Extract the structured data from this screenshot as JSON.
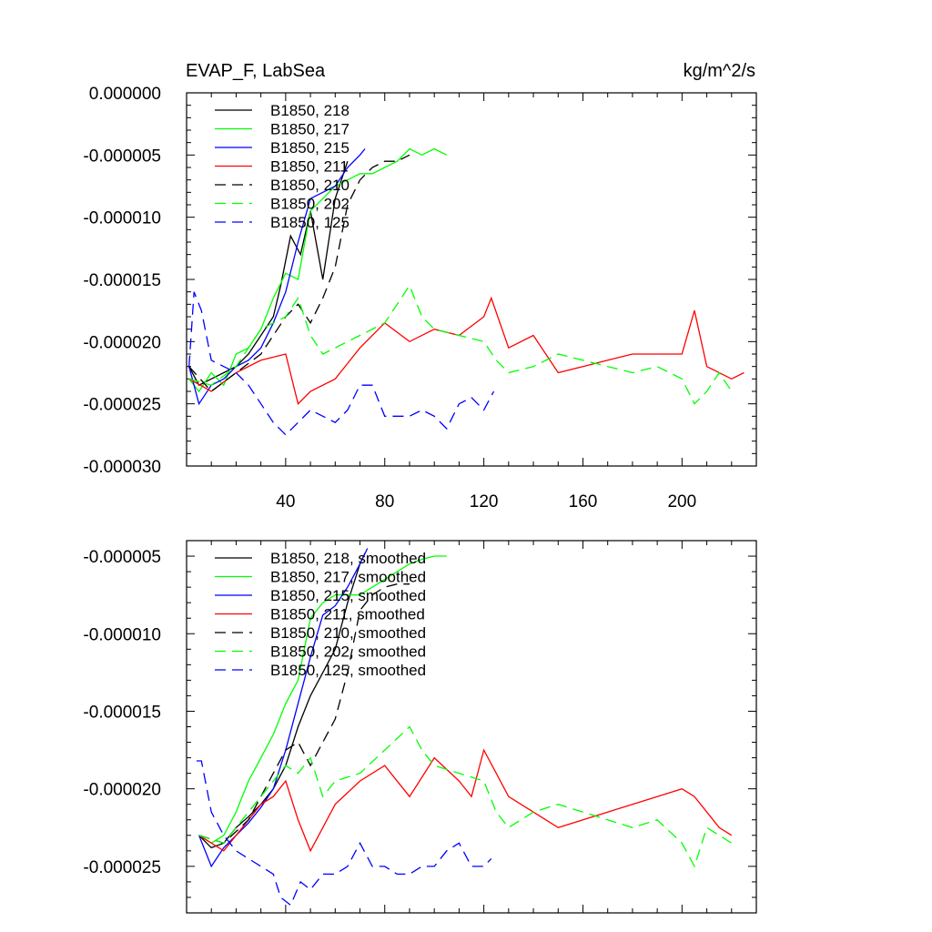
{
  "figure": {
    "title_left": "EVAP_F, LabSea",
    "title_right": "kg/m^2/s"
  },
  "chart_data": [
    {
      "type": "line",
      "panel": "top",
      "title": "EVAP_F, LabSea",
      "units": "kg/m^2/s",
      "xlim": [
        0,
        230
      ],
      "ylim": [
        -3e-05,
        0.0
      ],
      "x_ticks": [
        40,
        80,
        120,
        160,
        200
      ],
      "y_ticks": [
        0.0,
        -5e-06,
        -1e-05,
        -1.5e-05,
        -2e-05,
        -2.5e-05,
        -3e-05
      ],
      "x_tick_labels": [
        "40",
        "80",
        "120",
        "160",
        "200"
      ],
      "y_tick_labels": [
        "0.000000",
        "-0.000005",
        "-0.000010",
        "-0.000015",
        "-0.000020",
        "-0.000025",
        "-0.000030"
      ],
      "legend_position": "top-left",
      "series": [
        {
          "name": "B1850, 218",
          "color": "#000000",
          "dash": "solid",
          "x": [
            1,
            5,
            10,
            15,
            20,
            25,
            30,
            35,
            38,
            42,
            46,
            50,
            55,
            60,
            65
          ],
          "y": [
            -2.2e-05,
            -2.35e-05,
            -2.3e-05,
            -2.25e-05,
            -2.2e-05,
            -2.1e-05,
            -1.95e-05,
            -1.8e-05,
            -1.55e-05,
            -1.15e-05,
            -1.3e-05,
            -9.5e-06,
            -1.5e-05,
            -8.5e-06,
            -5.5e-06
          ]
        },
        {
          "name": "B1850, 217",
          "color": "#00ff00",
          "dash": "solid",
          "x": [
            1,
            5,
            10,
            15,
            20,
            25,
            30,
            35,
            40,
            45,
            50,
            55,
            60,
            65,
            70,
            75,
            80,
            85,
            90,
            95,
            100,
            105
          ],
          "y": [
            -2.3e-05,
            -2.4e-05,
            -2.25e-05,
            -2.35e-05,
            -2.1e-05,
            -2.05e-05,
            -1.9e-05,
            -1.65e-05,
            -1.45e-05,
            -1.5e-05,
            -9.5e-06,
            -8.5e-06,
            -7.5e-06,
            -7e-06,
            -6.5e-06,
            -6.5e-06,
            -6e-06,
            -5.5e-06,
            -4.5e-06,
            -5e-06,
            -4.5e-06,
            -5e-06
          ]
        },
        {
          "name": "B1850, 215",
          "color": "#0000ff",
          "dash": "solid",
          "x": [
            1,
            5,
            10,
            15,
            20,
            25,
            30,
            35,
            40,
            45,
            50,
            55,
            60,
            65,
            70,
            72
          ],
          "y": [
            -2.2e-05,
            -2.5e-05,
            -2.35e-05,
            -2.3e-05,
            -2.2e-05,
            -2.15e-05,
            -2.05e-05,
            -1.85e-05,
            -1.6e-05,
            -1.2e-05,
            -8.5e-06,
            -8e-06,
            -7.5e-06,
            -6e-06,
            -5e-06,
            -4.5e-06
          ]
        },
        {
          "name": "B1850, 211",
          "color": "#ff0000",
          "dash": "solid",
          "x": [
            1,
            10,
            20,
            30,
            40,
            45,
            50,
            60,
            70,
            80,
            90,
            100,
            110,
            120,
            123,
            130,
            140,
            150,
            160,
            170,
            180,
            190,
            200,
            205,
            210,
            220,
            225
          ],
          "y": [
            -2.3e-05,
            -2.4e-05,
            -2.25e-05,
            -2.15e-05,
            -2.1e-05,
            -2.5e-05,
            -2.4e-05,
            -2.3e-05,
            -2.05e-05,
            -1.85e-05,
            -2e-05,
            -1.9e-05,
            -1.95e-05,
            -1.8e-05,
            -1.65e-05,
            -2.05e-05,
            -1.95e-05,
            -2.25e-05,
            -2.2e-05,
            -2.15e-05,
            -2.1e-05,
            -2.1e-05,
            -2.1e-05,
            -1.75e-05,
            -2.2e-05,
            -2.3e-05,
            -2.25e-05
          ]
        },
        {
          "name": "B1850, 210",
          "color": "#000000",
          "dash": "dashed",
          "x": [
            1,
            10,
            20,
            30,
            40,
            45,
            50,
            55,
            60,
            65,
            70,
            75,
            80,
            85,
            90
          ],
          "y": [
            -2.2e-05,
            -2.4e-05,
            -2.25e-05,
            -2.1e-05,
            -1.8e-05,
            -1.7e-05,
            -1.85e-05,
            -1.65e-05,
            -1.4e-05,
            -9e-06,
            -7e-06,
            -6e-06,
            -5.5e-06,
            -5.5e-06,
            -5e-06
          ]
        },
        {
          "name": "B1850, 202",
          "color": "#00ff00",
          "dash": "dashed",
          "x": [
            1,
            10,
            20,
            30,
            40,
            45,
            50,
            55,
            60,
            70,
            80,
            90,
            95,
            100,
            110,
            120,
            125,
            130,
            140,
            150,
            160,
            170,
            180,
            190,
            200,
            205,
            210,
            215,
            220
          ],
          "y": [
            -2.3e-05,
            -2.35e-05,
            -2.2e-05,
            -1.9e-05,
            -1.8e-05,
            -1.65e-05,
            -1.95e-05,
            -2.1e-05,
            -2.05e-05,
            -1.95e-05,
            -1.85e-05,
            -1.55e-05,
            -1.8e-05,
            -1.9e-05,
            -1.95e-05,
            -2e-05,
            -2.15e-05,
            -2.25e-05,
            -2.2e-05,
            -2.1e-05,
            -2.15e-05,
            -2.2e-05,
            -2.25e-05,
            -2.2e-05,
            -2.3e-05,
            -2.5e-05,
            -2.4e-05,
            -2.25e-05,
            -2.4e-05
          ]
        },
        {
          "name": "B1850, 125",
          "color": "#0000ff",
          "dash": "dashed",
          "x": [
            1,
            3,
            6,
            10,
            15,
            20,
            25,
            30,
            35,
            40,
            45,
            50,
            55,
            60,
            65,
            70,
            75,
            80,
            85,
            90,
            95,
            100,
            105,
            110,
            115,
            120,
            124
          ],
          "y": [
            -2.2e-05,
            -1.6e-05,
            -1.75e-05,
            -2.15e-05,
            -2.2e-05,
            -2.25e-05,
            -2.35e-05,
            -2.5e-05,
            -2.65e-05,
            -2.75e-05,
            -2.65e-05,
            -2.55e-05,
            -2.6e-05,
            -2.65e-05,
            -2.55e-05,
            -2.35e-05,
            -2.35e-05,
            -2.6e-05,
            -2.6e-05,
            -2.6e-05,
            -2.55e-05,
            -2.6e-05,
            -2.7e-05,
            -2.5e-05,
            -2.45e-05,
            -2.55e-05,
            -2.4e-05
          ]
        }
      ]
    },
    {
      "type": "line",
      "panel": "bottom",
      "xlim": [
        0,
        230
      ],
      "ylim": [
        -2.8e-05,
        -4e-06
      ],
      "y_ticks": [
        -5e-06,
        -1e-05,
        -1.5e-05,
        -2e-05,
        -2.5e-05
      ],
      "y_tick_labels": [
        "-0.000005",
        "-0.000010",
        "-0.000015",
        "-0.000020",
        "-0.000025"
      ],
      "legend_position": "top-left",
      "series": [
        {
          "name": "B1850, 218, smoothed",
          "color": "#000000",
          "dash": "solid",
          "x": [
            5,
            10,
            15,
            20,
            25,
            30,
            35,
            40,
            45,
            50,
            55,
            60,
            65,
            70,
            72
          ],
          "y": [
            -2.3e-05,
            -2.38e-05,
            -2.35e-05,
            -2.25e-05,
            -2.18e-05,
            -2.1e-05,
            -2e-05,
            -1.85e-05,
            -1.6e-05,
            -1.4e-05,
            -1.25e-05,
            -1.1e-05,
            -8e-06,
            -5.5e-06,
            -4.8e-06
          ]
        },
        {
          "name": "B1850, 217, smoothed",
          "color": "#00ff00",
          "dash": "solid",
          "x": [
            5,
            10,
            15,
            20,
            25,
            30,
            35,
            40,
            45,
            50,
            55,
            60,
            65,
            70,
            75,
            80,
            85,
            90,
            95,
            100,
            105
          ],
          "y": [
            -2.3e-05,
            -2.35e-05,
            -2.3e-05,
            -2.15e-05,
            -1.95e-05,
            -1.8e-05,
            -1.65e-05,
            -1.45e-05,
            -1.3e-05,
            -9e-06,
            -8e-06,
            -7.5e-06,
            -7.5e-06,
            -7.5e-06,
            -7e-06,
            -6.5e-06,
            -6e-06,
            -5.5e-06,
            -5.2e-06,
            -5e-06,
            -5e-06
          ]
        },
        {
          "name": "B1850, 215, smoothed",
          "color": "#0000ff",
          "dash": "solid",
          "x": [
            5,
            10,
            15,
            20,
            25,
            30,
            35,
            40,
            45,
            50,
            55,
            60,
            65,
            70,
            73
          ],
          "y": [
            -2.3e-05,
            -2.5e-05,
            -2.38e-05,
            -2.3e-05,
            -2.22e-05,
            -2.12e-05,
            -2e-05,
            -1.75e-05,
            -1.45e-05,
            -1.15e-05,
            -8.8e-06,
            -8.2e-06,
            -7e-06,
            -5.5e-06,
            -4.5e-06
          ]
        },
        {
          "name": "B1850, 211, smoothed",
          "color": "#ff0000",
          "dash": "solid",
          "x": [
            5,
            15,
            25,
            30,
            35,
            40,
            45,
            50,
            55,
            60,
            70,
            80,
            90,
            100,
            110,
            115,
            120,
            125,
            130,
            140,
            150,
            160,
            170,
            180,
            190,
            200,
            205,
            210,
            215,
            220
          ],
          "y": [
            -2.3e-05,
            -2.4e-05,
            -2.2e-05,
            -2.1e-05,
            -2.05e-05,
            -1.95e-05,
            -2.2e-05,
            -2.4e-05,
            -2.25e-05,
            -2.1e-05,
            -1.95e-05,
            -1.85e-05,
            -2.05e-05,
            -1.8e-05,
            -1.95e-05,
            -2.05e-05,
            -1.75e-05,
            -1.9e-05,
            -2.05e-05,
            -2.15e-05,
            -2.25e-05,
            -2.2e-05,
            -2.15e-05,
            -2.1e-05,
            -2.05e-05,
            -2e-05,
            -2.05e-05,
            -2.15e-05,
            -2.25e-05,
            -2.3e-05
          ]
        },
        {
          "name": "B1850, 210, smoothed",
          "color": "#000000",
          "dash": "dashed",
          "x": [
            5,
            15,
            25,
            35,
            40,
            45,
            50,
            55,
            60,
            65,
            70,
            75,
            80,
            85,
            90
          ],
          "y": [
            -2.3e-05,
            -2.35e-05,
            -2.2e-05,
            -1.9e-05,
            -1.75e-05,
            -1.7e-05,
            -1.85e-05,
            -1.7e-05,
            -1.55e-05,
            -1.25e-05,
            -8.5e-06,
            -7.5e-06,
            -7e-06,
            -6.8e-06,
            -6.8e-06
          ]
        },
        {
          "name": "B1850, 202, smoothed",
          "color": "#00ff00",
          "dash": "dashed",
          "x": [
            5,
            15,
            25,
            35,
            40,
            45,
            50,
            55,
            60,
            70,
            80,
            90,
            95,
            100,
            110,
            120,
            125,
            130,
            140,
            150,
            160,
            170,
            180,
            190,
            200,
            205,
            210,
            215,
            220
          ],
          "y": [
            -2.3e-05,
            -2.35e-05,
            -2.15e-05,
            -1.95e-05,
            -1.85e-05,
            -1.9e-05,
            -1.8e-05,
            -2.05e-05,
            -1.95e-05,
            -1.9e-05,
            -1.75e-05,
            -1.6e-05,
            -1.75e-05,
            -1.85e-05,
            -1.9e-05,
            -1.95e-05,
            -2.15e-05,
            -2.25e-05,
            -2.15e-05,
            -2.1e-05,
            -2.15e-05,
            -2.2e-05,
            -2.25e-05,
            -2.2e-05,
            -2.35e-05,
            -2.5e-05,
            -2.25e-05,
            -2.3e-05,
            -2.35e-05
          ]
        },
        {
          "name": "B1850, 125, smoothed",
          "color": "#0000ff",
          "dash": "dashed",
          "x": [
            4,
            6,
            10,
            15,
            20,
            25,
            30,
            35,
            38,
            42,
            46,
            50,
            55,
            60,
            65,
            70,
            75,
            80,
            85,
            90,
            95,
            100,
            105,
            110,
            115,
            120,
            123
          ],
          "y": [
            -1.82e-05,
            -1.82e-05,
            -2.15e-05,
            -2.3e-05,
            -2.4e-05,
            -2.45e-05,
            -2.5e-05,
            -2.55e-05,
            -2.7e-05,
            -2.75e-05,
            -2.6e-05,
            -2.65e-05,
            -2.55e-05,
            -2.55e-05,
            -2.5e-05,
            -2.35e-05,
            -2.5e-05,
            -2.5e-05,
            -2.55e-05,
            -2.55e-05,
            -2.5e-05,
            -2.5e-05,
            -2.4e-05,
            -2.35e-05,
            -2.5e-05,
            -2.5e-05,
            -2.45e-05
          ]
        }
      ]
    }
  ]
}
